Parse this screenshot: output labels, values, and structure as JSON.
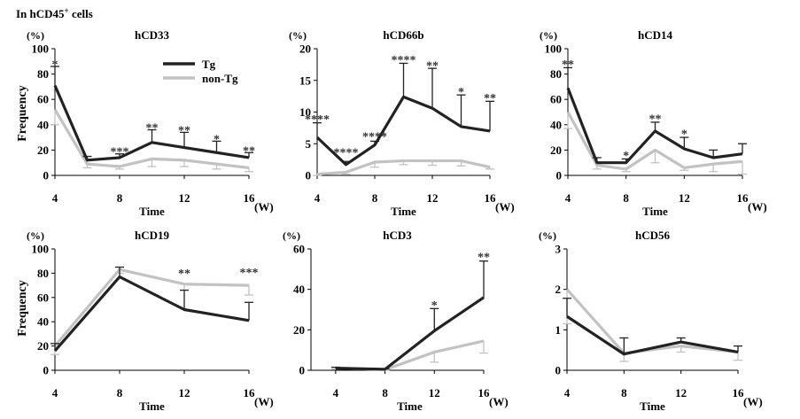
{
  "figure": {
    "header": "In hCD45",
    "header_sup": "+",
    "header_suffix": " cells",
    "y_axis_label": "Frequency",
    "x_axis_label": "Time",
    "x_unit": "(W)",
    "y_unit": "(%)"
  },
  "chart_data": [
    {
      "type": "line",
      "title": "hCD33",
      "x": [
        4,
        6,
        8,
        10,
        12,
        14,
        16
      ],
      "x_ticks": [
        4,
        8,
        12,
        16
      ],
      "ylim": [
        0,
        100
      ],
      "y_ticks": [
        0,
        20,
        40,
        60,
        80,
        100
      ],
      "legend": {
        "entries": [
          "Tg",
          "non-Tg"
        ],
        "placement": "top-right"
      },
      "series": [
        {
          "name": "Tg",
          "color": "#222222",
          "values": [
            71,
            12,
            14,
            26,
            22,
            18,
            14
          ],
          "errors": [
            15,
            3,
            3,
            10,
            12,
            9,
            4
          ]
        },
        {
          "name": "non-Tg",
          "color": "#c2c2c2",
          "values": [
            52,
            9,
            7,
            13,
            12,
            9,
            6
          ],
          "errors": [
            12,
            3,
            2,
            6,
            5,
            4,
            3
          ]
        }
      ],
      "annotations": [
        {
          "x": 4,
          "y": 86,
          "text": "*"
        },
        {
          "x": 8,
          "y": 17,
          "text": "***"
        },
        {
          "x": 10,
          "y": 36,
          "text": "**"
        },
        {
          "x": 12,
          "y": 34,
          "text": "**"
        },
        {
          "x": 14,
          "y": 27,
          "text": "*"
        },
        {
          "x": 16,
          "y": 18,
          "text": "**"
        }
      ]
    },
    {
      "type": "line",
      "title": "hCD66b",
      "x": [
        4,
        6,
        8,
        10,
        12,
        14,
        16
      ],
      "x_ticks": [
        4,
        8,
        12,
        16
      ],
      "ylim": [
        0,
        20
      ],
      "y_ticks": [
        0,
        5,
        10,
        15,
        20
      ],
      "series": [
        {
          "name": "Tg",
          "color": "#222222",
          "values": [
            6,
            1.7,
            4.8,
            12.4,
            10.6,
            7.7,
            7
          ],
          "errors": [
            2.3,
            0.5,
            0.6,
            5.3,
            6.3,
            5,
            4.7
          ]
        },
        {
          "name": "non-Tg",
          "color": "#c2c2c2",
          "values": [
            0.2,
            0.5,
            2.1,
            2.3,
            2.3,
            2.3,
            1.3
          ],
          "errors": [
            0.2,
            0.3,
            0.8,
            0.6,
            0.7,
            0.8,
            0.3
          ]
        }
      ],
      "annotations": [
        {
          "x": 4,
          "y": 8.5,
          "text": "****"
        },
        {
          "x": 6,
          "y": 3.3,
          "text": "****"
        },
        {
          "x": 8,
          "y": 5.8,
          "text": "****"
        },
        {
          "x": 10,
          "y": 17.9,
          "text": "****"
        },
        {
          "x": 12,
          "y": 17.0,
          "text": "**"
        },
        {
          "x": 14,
          "y": 12.9,
          "text": "*"
        },
        {
          "x": 16,
          "y": 11.9,
          "text": "**"
        }
      ]
    },
    {
      "type": "line",
      "title": "hCD14",
      "x": [
        4,
        6,
        8,
        10,
        12,
        14,
        16
      ],
      "x_ticks": [
        4,
        8,
        12,
        16
      ],
      "ylim": [
        0,
        100
      ],
      "y_ticks": [
        0,
        20,
        40,
        60,
        80,
        100
      ],
      "series": [
        {
          "name": "Tg",
          "color": "#222222",
          "values": [
            69,
            10,
            10,
            35,
            21,
            14,
            17
          ],
          "errors": [
            16,
            4,
            3,
            7,
            9,
            6,
            8
          ]
        },
        {
          "name": "non-Tg",
          "color": "#c2c2c2",
          "values": [
            50,
            8,
            5,
            20,
            6,
            9,
            11
          ],
          "errors": [
            13,
            3,
            2,
            10,
            2,
            6,
            10
          ]
        }
      ],
      "annotations": [
        {
          "x": 4,
          "y": 86,
          "text": "**"
        },
        {
          "x": 8,
          "y": 14,
          "text": "*"
        },
        {
          "x": 10,
          "y": 43,
          "text": "**"
        },
        {
          "x": 12,
          "y": 31,
          "text": "*"
        }
      ]
    },
    {
      "type": "line",
      "title": "hCD19",
      "x": [
        4,
        8,
        12,
        16
      ],
      "x_ticks": [
        4,
        8,
        12,
        16
      ],
      "ylim": [
        0,
        100
      ],
      "y_ticks": [
        0,
        20,
        40,
        60,
        80,
        100
      ],
      "series": [
        {
          "name": "Tg",
          "color": "#222222",
          "values": [
            16,
            77,
            50,
            41
          ],
          "errors": [
            6,
            8,
            16,
            15
          ]
        },
        {
          "name": "non-Tg",
          "color": "#c2c2c2",
          "values": [
            20,
            83,
            71,
            70
          ],
          "errors": [
            7,
            3,
            5,
            8
          ]
        }
      ],
      "annotations": [
        {
          "x": 12,
          "y": 78,
          "text": "**"
        },
        {
          "x": 16,
          "y": 79,
          "text": "***"
        }
      ]
    },
    {
      "type": "line",
      "title": "hCD3",
      "x": [
        4,
        8,
        12,
        16
      ],
      "x_ticks": [
        4,
        8,
        12,
        16
      ],
      "ylim": [
        0,
        60
      ],
      "y_ticks": [
        0,
        20,
        40,
        60
      ],
      "series": [
        {
          "name": "Tg",
          "color": "#222222",
          "values": [
            1,
            0.5,
            19.5,
            36
          ],
          "errors": [
            0.5,
            0.2,
            11,
            18
          ]
        },
        {
          "name": "non-Tg",
          "color": "#c2c2c2",
          "values": [
            1.2,
            0.3,
            9,
            14.5
          ],
          "errors": [
            0.6,
            0.2,
            5,
            6
          ]
        }
      ],
      "annotations": [
        {
          "x": 12,
          "y": 31,
          "text": "*"
        },
        {
          "x": 16,
          "y": 55,
          "text": "**"
        }
      ]
    },
    {
      "type": "line",
      "title": "hCD56",
      "x": [
        4,
        8,
        12,
        16
      ],
      "x_ticks": [
        4,
        8,
        12,
        16
      ],
      "ylim": [
        0,
        3
      ],
      "y_ticks": [
        0,
        1,
        2,
        3
      ],
      "series": [
        {
          "name": "Tg",
          "color": "#222222",
          "values": [
            1.33,
            0.4,
            0.7,
            0.45
          ],
          "errors": [
            0.45,
            0.4,
            0.1,
            0.15
          ]
        },
        {
          "name": "non-Tg",
          "color": "#c2c2c2",
          "values": [
            2.0,
            0.42,
            0.6,
            0.45
          ],
          "errors": [
            0.85,
            0.2,
            0.15,
            0.2
          ]
        }
      ],
      "annotations": []
    }
  ]
}
